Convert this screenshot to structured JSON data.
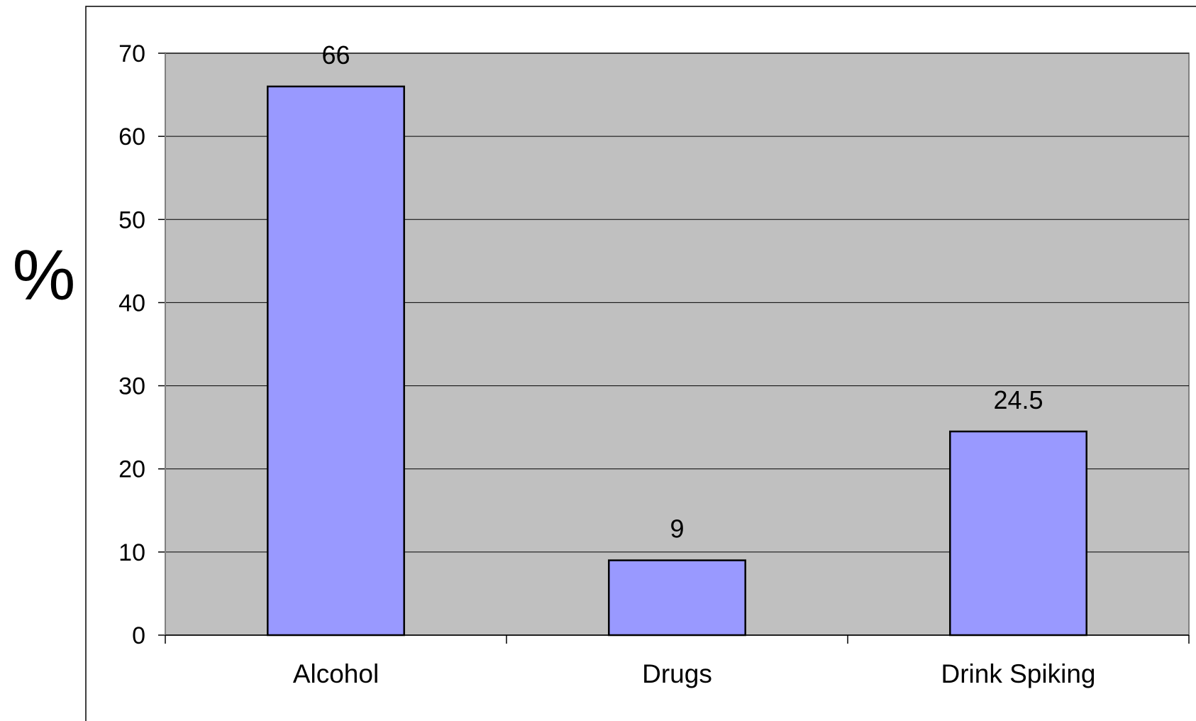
{
  "chart_data": {
    "type": "bar",
    "title": "",
    "xlabel": "",
    "ylabel": "%",
    "categories": [
      "Alcohol",
      "Drugs",
      "Drink Spiking"
    ],
    "values": [
      66,
      9,
      24.5
    ],
    "value_labels": [
      "66",
      "9",
      "24.5"
    ],
    "ylim": [
      0,
      70
    ],
    "yticks": [
      0,
      10,
      20,
      30,
      40,
      50,
      60,
      70
    ],
    "grid": true,
    "legend": "none",
    "colors": {
      "bar_fill": "#9999FF",
      "bar_stroke": "#000000",
      "plot_background": "#C0C0C0",
      "gridline": "#000000"
    }
  }
}
